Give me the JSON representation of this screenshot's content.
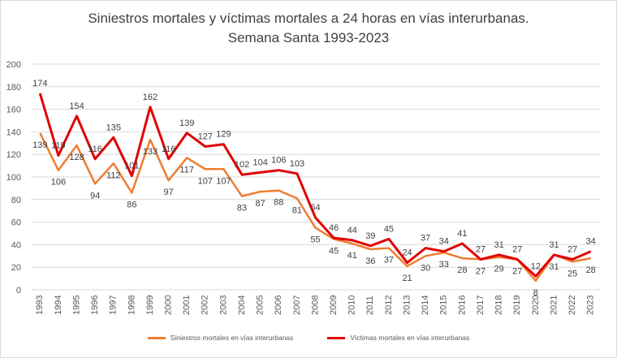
{
  "chart_data": {
    "type": "line",
    "title": "Siniestros mortales y víctimas mortales a 24 horas en vías interurbanas.",
    "subtitle": "Semana Santa 1993-2023",
    "xlabel": "",
    "ylabel": "",
    "ylim": [
      0,
      200
    ],
    "yticks": [
      0,
      20,
      40,
      60,
      80,
      100,
      120,
      140,
      160,
      180,
      200
    ],
    "grid": true,
    "legend_position": "bottom",
    "categories": [
      "1993",
      "1994",
      "1995",
      "1996",
      "1997",
      "1998",
      "1999",
      "2000",
      "2001",
      "2002",
      "2003",
      "2004",
      "2005",
      "2006",
      "2007",
      "2008",
      "2009",
      "2010",
      "2011",
      "2012",
      "2013",
      "2014",
      "2015",
      "2016",
      "2017",
      "2018",
      "2019",
      "2020",
      "2021",
      "2022",
      "2023"
    ],
    "series": [
      {
        "name": "Siniestros mortales en vías interurbanas",
        "color": "#ED7D31",
        "values": [
          139,
          106,
          128,
          94,
          112,
          86,
          133,
          97,
          117,
          107,
          107,
          83,
          87,
          88,
          81,
          55,
          45,
          41,
          36,
          37,
          21,
          30,
          33,
          28,
          27,
          29,
          27,
          8,
          31,
          25,
          28
        ]
      },
      {
        "name": "Víctimas mortales en vías interurbanas",
        "color": "#E00000",
        "values": [
          174,
          119,
          154,
          116,
          135,
          101,
          162,
          116,
          139,
          127,
          129,
          102,
          104,
          106,
          103,
          64,
          46,
          44,
          39,
          45,
          24,
          37,
          34,
          41,
          27,
          31,
          27,
          12,
          31,
          27,
          34
        ]
      }
    ]
  }
}
